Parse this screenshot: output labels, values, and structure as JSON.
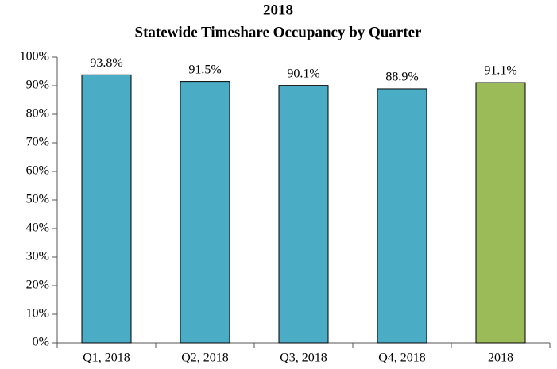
{
  "chart_data": {
    "type": "bar",
    "title": "2018",
    "subtitle": "Statewide Timeshare Occupancy by Quarter",
    "categories": [
      "Q1, 2018",
      "Q2, 2018",
      "Q3, 2018",
      "Q4, 2018",
      "2018"
    ],
    "values": [
      93.8,
      91.5,
      90.1,
      88.9,
      91.1
    ],
    "value_labels": [
      "93.8%",
      "91.5%",
      "90.1%",
      "88.9%",
      "91.1%"
    ],
    "colors": [
      "#4bacc6",
      "#4bacc6",
      "#4bacc6",
      "#4bacc6",
      "#9bbb59"
    ],
    "ylim": [
      0,
      100
    ],
    "yticks": [
      {
        "value": 0,
        "label": "0%"
      },
      {
        "value": 10,
        "label": "10%"
      },
      {
        "value": 20,
        "label": "20%"
      },
      {
        "value": 30,
        "label": "30%"
      },
      {
        "value": 40,
        "label": "40%"
      },
      {
        "value": 50,
        "label": "50%"
      },
      {
        "value": 60,
        "label": "60%"
      },
      {
        "value": 70,
        "label": "70%"
      },
      {
        "value": 80,
        "label": "80%"
      },
      {
        "value": 90,
        "label": "90%"
      },
      {
        "value": 100,
        "label": "100%"
      }
    ],
    "grid": false
  }
}
